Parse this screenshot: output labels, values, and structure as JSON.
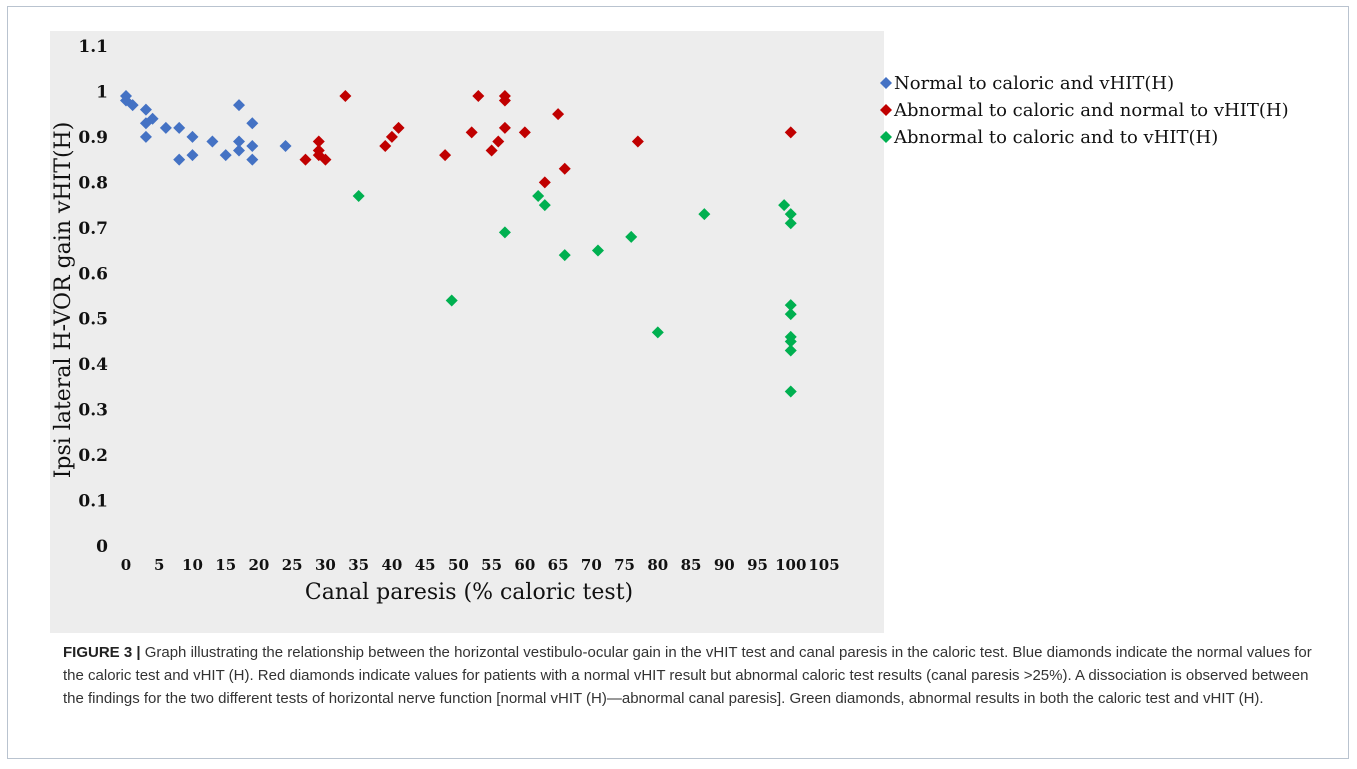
{
  "chart_data": {
    "type": "scatter",
    "xlabel": "Canal paresis (% caloric test)",
    "ylabel": "Ipsi lateral H-VOR gain vHIT(H)",
    "xlim": [
      0,
      105
    ],
    "ylim": [
      0,
      1.1
    ],
    "x_ticks": [
      "0",
      "5",
      "10",
      "15",
      "20",
      "25",
      "30",
      "35",
      "40",
      "45",
      "50",
      "55",
      "60",
      "65",
      "70",
      "75",
      "80",
      "85",
      "90",
      "95",
      "100",
      "105"
    ],
    "y_ticks": [
      "0",
      "0.1",
      "0.2",
      "0.3",
      "0.4",
      "0.5",
      "0.6",
      "0.7",
      "0.8",
      "0.9",
      "1",
      "1.1"
    ],
    "legend_position": "right",
    "series": [
      {
        "name": "Normal to caloric and vHIT(H)",
        "color": "#4472c4",
        "marker": "diamond",
        "points": [
          [
            0,
            0.99
          ],
          [
            0,
            0.98
          ],
          [
            1,
            0.97
          ],
          [
            3,
            0.96
          ],
          [
            3,
            0.93
          ],
          [
            3,
            0.9
          ],
          [
            4,
            0.94
          ],
          [
            6,
            0.92
          ],
          [
            8,
            0.92
          ],
          [
            8,
            0.85
          ],
          [
            10,
            0.9
          ],
          [
            10,
            0.86
          ],
          [
            13,
            0.89
          ],
          [
            15,
            0.86
          ],
          [
            17,
            0.97
          ],
          [
            17,
            0.89
          ],
          [
            17,
            0.87
          ],
          [
            19,
            0.93
          ],
          [
            19,
            0.88
          ],
          [
            19,
            0.85
          ],
          [
            24,
            0.88
          ]
        ]
      },
      {
        "name": "Abnormal to caloric and normal to vHIT(H)",
        "color": "#c00000",
        "marker": "diamond",
        "points": [
          [
            27,
            0.85
          ],
          [
            29,
            0.89
          ],
          [
            29,
            0.87
          ],
          [
            29,
            0.86
          ],
          [
            30,
            0.85
          ],
          [
            33,
            0.99
          ],
          [
            39,
            0.88
          ],
          [
            40,
            0.9
          ],
          [
            41,
            0.92
          ],
          [
            48,
            0.86
          ],
          [
            52,
            0.91
          ],
          [
            53,
            0.99
          ],
          [
            55,
            0.87
          ],
          [
            56,
            0.89
          ],
          [
            57,
            0.99
          ],
          [
            57,
            0.98
          ],
          [
            57,
            0.92
          ],
          [
            60,
            0.91
          ],
          [
            63,
            0.8
          ],
          [
            65,
            0.95
          ],
          [
            66,
            0.83
          ],
          [
            77,
            0.89
          ],
          [
            100,
            0.91
          ]
        ]
      },
      {
        "name": "Abnormal to caloric and to vHIT(H)",
        "color": "#00b050",
        "marker": "diamond",
        "points": [
          [
            35,
            0.77
          ],
          [
            49,
            0.54
          ],
          [
            57,
            0.69
          ],
          [
            62,
            0.77
          ],
          [
            63,
            0.75
          ],
          [
            66,
            0.64
          ],
          [
            71,
            0.65
          ],
          [
            76,
            0.68
          ],
          [
            80,
            0.47
          ],
          [
            87,
            0.73
          ],
          [
            99,
            0.75
          ],
          [
            100,
            0.73
          ],
          [
            100,
            0.71
          ],
          [
            100,
            0.53
          ],
          [
            100,
            0.51
          ],
          [
            100,
            0.46
          ],
          [
            100,
            0.45
          ],
          [
            100,
            0.43
          ],
          [
            100,
            0.34
          ]
        ]
      }
    ]
  },
  "caption": {
    "label": "FIGURE 3 |",
    "text": " Graph illustrating the relationship between the horizontal vestibulo-ocular gain in the vHIT test and canal paresis in the caloric test. Blue diamonds indicate the normal values for the caloric test and vHIT (H). Red diamonds indicate values for patients with a normal vHIT result but abnormal caloric test results (canal paresis >25%). A dissociation is observed between the findings for the two different tests of horizontal nerve function [normal vHIT (H)—abnormal canal paresis]. Green diamonds, abnormal results in both the caloric test and vHIT (H)."
  }
}
